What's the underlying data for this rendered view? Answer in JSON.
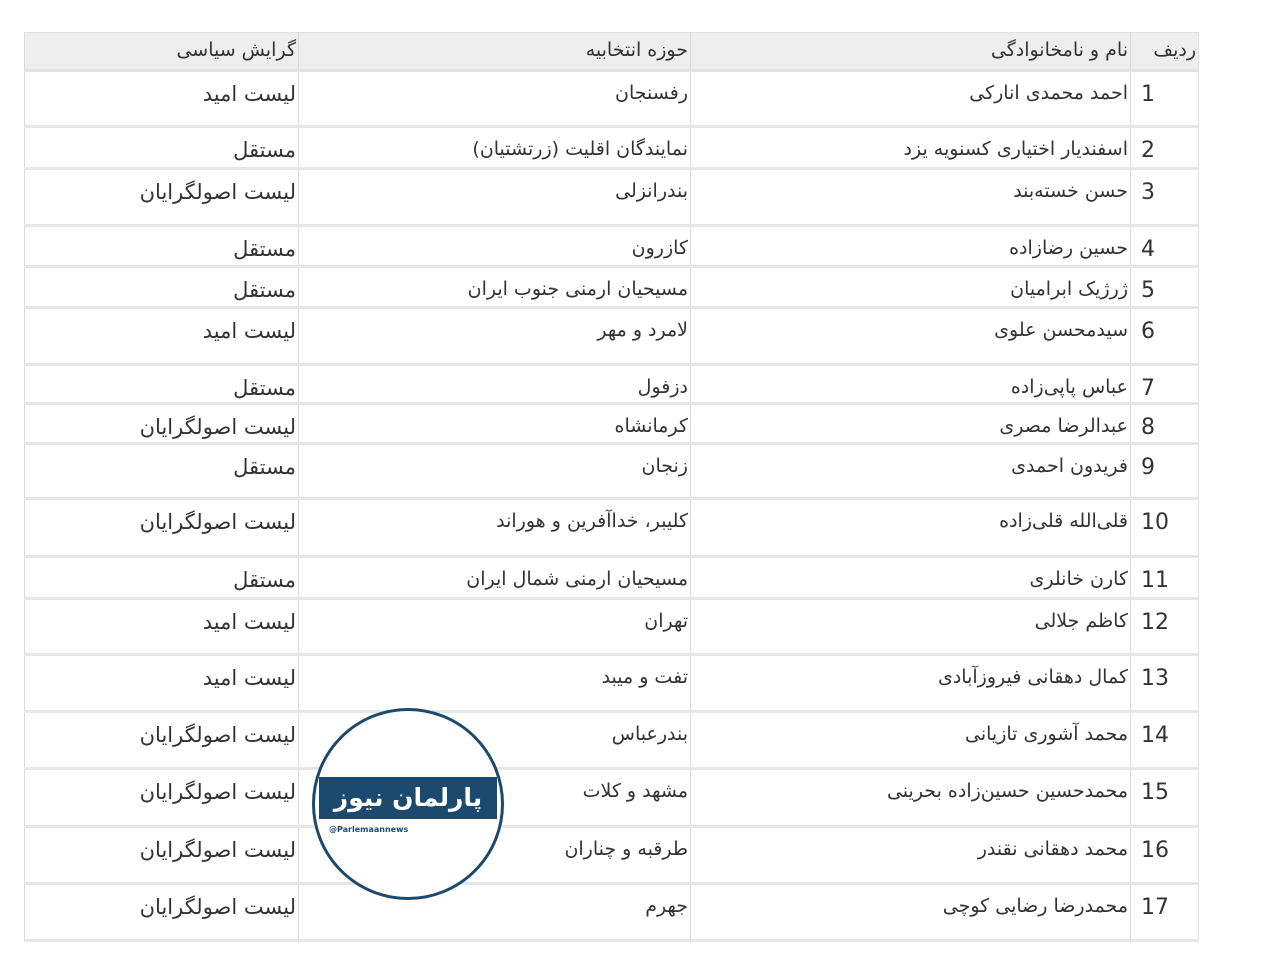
{
  "headers": {
    "row": "ردیف",
    "name": "نام و نامخانوادگی",
    "district": "حوزه انتخابیه",
    "trend": "گرایش سیاسی"
  },
  "rows": [
    {
      "num": "1",
      "name": "احمد محمدی انارکی",
      "district": "رفسنجان",
      "trend": "لیست امید"
    },
    {
      "num": "2",
      "name": "اسفندیار اختیاری کسنویه یزد",
      "district": "نمایندگان اقلیت (زرتشتیان)",
      "trend": "مستقل"
    },
    {
      "num": "3",
      "name": "حسن خسته‌بند",
      "district": "بندرانزلی",
      "trend": "لیست اصولگرایان"
    },
    {
      "num": "4",
      "name": "حسین رضازاده",
      "district": "کازرون",
      "trend": "مستقل"
    },
    {
      "num": "5",
      "name": "ژرژیک ابرامیان",
      "district": "مسیحیان ارمنی جنوب ایران",
      "trend": "مستقل"
    },
    {
      "num": "6",
      "name": "سیدمحسن علوی",
      "district": "لامرد و مهر",
      "trend": "لیست امید"
    },
    {
      "num": "7",
      "name": "عباس پاپی‌زاده",
      "district": "دزفول",
      "trend": "مستقل"
    },
    {
      "num": "8",
      "name": "عبدالرضا مصری",
      "district": "کرمانشاه",
      "trend": "لیست اصولگرایان"
    },
    {
      "num": "9",
      "name": "فریدون احمدی",
      "district": "زنجان",
      "trend": "مستقل"
    },
    {
      "num": "10",
      "name": "قلی‌الله قلی‌زاده",
      "district": "کلیبر، خداآفرین و هوراند",
      "trend": "لیست اصولگرایان"
    },
    {
      "num": "11",
      "name": "کارن خانلری",
      "district": "مسیحیان ارمنی شمال ایران",
      "trend": "مستقل"
    },
    {
      "num": "12",
      "name": "کاظم جلالی",
      "district": "تهران",
      "trend": "لیست امید"
    },
    {
      "num": "13",
      "name": "کمال دهقانی فیروزآبادی",
      "district": "تفت و میبد",
      "trend": "لیست امید"
    },
    {
      "num": "14",
      "name": "محمد آشوری تازیانی",
      "district": "بندرعباس",
      "trend": "لیست اصولگرایان"
    },
    {
      "num": "15",
      "name": "محمدحسین حسین‌زاده بحرینی",
      "district": "مشهد و کلات",
      "trend": "لیست اصولگرایان"
    },
    {
      "num": "16",
      "name": "محمد دهقانی نقندر",
      "district": "طرقبه و چناران",
      "trend": "لیست اصولگرایان"
    },
    {
      "num": "17",
      "name": "محمدرضا رضایی کوچی",
      "district": "جهرم",
      "trend": "لیست اصولگرایان"
    }
  ],
  "watermark": {
    "text": "پارلمان نیوز",
    "handle": "@Parlemaannews",
    "color": "#1b4a6e"
  }
}
